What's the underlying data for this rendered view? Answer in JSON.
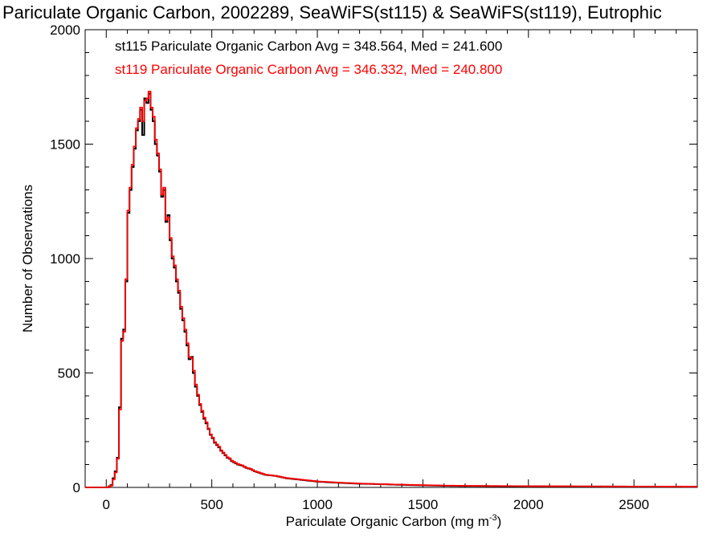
{
  "chart_data": {
    "type": "histogram",
    "title": "Pariculate Organic Carbon, 2002289, SeaWiFS(st115) & SeaWiFS(st119), Eutrophic",
    "xlabel": "Pariculate Organic Carbon (mg m",
    "xlabel_sup": "-3",
    "xlabel_close": ")",
    "ylabel": "Number of Observations",
    "xlim": [
      -100,
      2800
    ],
    "ylim": [
      0,
      2000
    ],
    "xticks": [
      0,
      500,
      1000,
      1500,
      2000,
      2500
    ],
    "xtick_labels": [
      "0",
      "500",
      "1000",
      "1500",
      "2000",
      "2500"
    ],
    "yticks": [
      0,
      500,
      1000,
      1500,
      2000
    ],
    "ytick_labels": [
      "0",
      "500",
      "1000",
      "1500",
      "2000"
    ],
    "bin_width": 10,
    "series": [
      {
        "name": "st115",
        "color": "#000000",
        "legend": "st115 Pariculate Organic Carbon Avg = 348.564, Med = 241.600",
        "points": [
          [
            -100,
            0
          ],
          [
            0,
            0
          ],
          [
            20,
            10
          ],
          [
            30,
            40
          ],
          [
            40,
            70
          ],
          [
            50,
            130
          ],
          [
            60,
            350
          ],
          [
            70,
            650
          ],
          [
            80,
            690
          ],
          [
            90,
            900
          ],
          [
            100,
            1200
          ],
          [
            110,
            1300
          ],
          [
            120,
            1400
          ],
          [
            130,
            1480
          ],
          [
            140,
            1560
          ],
          [
            150,
            1600
          ],
          [
            160,
            1650
          ],
          [
            170,
            1540
          ],
          [
            180,
            1700
          ],
          [
            190,
            1680
          ],
          [
            200,
            1720
          ],
          [
            210,
            1650
          ],
          [
            220,
            1600
          ],
          [
            230,
            1500
          ],
          [
            240,
            1450
          ],
          [
            250,
            1380
          ],
          [
            260,
            1270
          ],
          [
            270,
            1300
          ],
          [
            280,
            1160
          ],
          [
            290,
            1190
          ],
          [
            300,
            1080
          ],
          [
            310,
            1000
          ],
          [
            320,
            960
          ],
          [
            330,
            900
          ],
          [
            340,
            850
          ],
          [
            350,
            780
          ],
          [
            360,
            730
          ],
          [
            370,
            680
          ],
          [
            380,
            620
          ],
          [
            390,
            560
          ],
          [
            400,
            570
          ],
          [
            410,
            500
          ],
          [
            420,
            440
          ],
          [
            430,
            400
          ],
          [
            440,
            360
          ],
          [
            450,
            330
          ],
          [
            460,
            300
          ],
          [
            470,
            280
          ],
          [
            480,
            255
          ],
          [
            490,
            230
          ],
          [
            500,
            215
          ],
          [
            510,
            195
          ],
          [
            520,
            185
          ],
          [
            530,
            175
          ],
          [
            540,
            160
          ],
          [
            550,
            150
          ],
          [
            560,
            140
          ],
          [
            570,
            130
          ],
          [
            580,
            125
          ],
          [
            590,
            115
          ],
          [
            600,
            110
          ],
          [
            620,
            100
          ],
          [
            640,
            95
          ],
          [
            660,
            85
          ],
          [
            680,
            80
          ],
          [
            700,
            70
          ],
          [
            750,
            55
          ],
          [
            800,
            50
          ],
          [
            850,
            40
          ],
          [
            900,
            35
          ],
          [
            1000,
            25
          ],
          [
            1100,
            20
          ],
          [
            1200,
            16
          ],
          [
            1300,
            14
          ],
          [
            1400,
            11
          ],
          [
            1500,
            9
          ],
          [
            1600,
            7
          ],
          [
            1700,
            6
          ],
          [
            1800,
            6
          ],
          [
            1900,
            5
          ],
          [
            2000,
            5
          ],
          [
            2200,
            4
          ],
          [
            2400,
            4
          ],
          [
            2600,
            3
          ],
          [
            2800,
            3
          ]
        ]
      },
      {
        "name": "st119",
        "color": "#ff0000",
        "legend": "st119 Pariculate Organic Carbon Avg = 346.332, Med = 240.800",
        "points": [
          [
            -100,
            0
          ],
          [
            0,
            0
          ],
          [
            20,
            8
          ],
          [
            30,
            35
          ],
          [
            40,
            65
          ],
          [
            50,
            125
          ],
          [
            60,
            340
          ],
          [
            70,
            640
          ],
          [
            80,
            680
          ],
          [
            90,
            910
          ],
          [
            100,
            1210
          ],
          [
            110,
            1310
          ],
          [
            120,
            1410
          ],
          [
            130,
            1490
          ],
          [
            140,
            1570
          ],
          [
            150,
            1610
          ],
          [
            160,
            1660
          ],
          [
            170,
            1600
          ],
          [
            180,
            1690
          ],
          [
            190,
            1700
          ],
          [
            200,
            1730
          ],
          [
            210,
            1660
          ],
          [
            220,
            1620
          ],
          [
            230,
            1520
          ],
          [
            240,
            1460
          ],
          [
            250,
            1390
          ],
          [
            260,
            1280
          ],
          [
            270,
            1310
          ],
          [
            280,
            1170
          ],
          [
            290,
            1180
          ],
          [
            300,
            1090
          ],
          [
            310,
            1010
          ],
          [
            320,
            970
          ],
          [
            330,
            910
          ],
          [
            340,
            860
          ],
          [
            350,
            790
          ],
          [
            360,
            740
          ],
          [
            370,
            690
          ],
          [
            380,
            630
          ],
          [
            390,
            570
          ],
          [
            400,
            565
          ],
          [
            410,
            510
          ],
          [
            420,
            450
          ],
          [
            430,
            405
          ],
          [
            440,
            365
          ],
          [
            450,
            335
          ],
          [
            460,
            305
          ],
          [
            470,
            285
          ],
          [
            480,
            258
          ],
          [
            490,
            232
          ],
          [
            500,
            218
          ],
          [
            510,
            198
          ],
          [
            520,
            188
          ],
          [
            530,
            178
          ],
          [
            540,
            162
          ],
          [
            550,
            152
          ],
          [
            560,
            142
          ],
          [
            570,
            132
          ],
          [
            580,
            127
          ],
          [
            590,
            117
          ],
          [
            600,
            112
          ],
          [
            620,
            102
          ],
          [
            640,
            96
          ],
          [
            660,
            86
          ],
          [
            680,
            81
          ],
          [
            700,
            71
          ],
          [
            750,
            56
          ],
          [
            800,
            50
          ],
          [
            850,
            41
          ],
          [
            900,
            36
          ],
          [
            1000,
            26
          ],
          [
            1100,
            21
          ],
          [
            1200,
            17
          ],
          [
            1300,
            14
          ],
          [
            1400,
            12
          ],
          [
            1500,
            10
          ],
          [
            1600,
            8
          ],
          [
            1700,
            7
          ],
          [
            1800,
            6
          ],
          [
            1900,
            6
          ],
          [
            2000,
            5
          ],
          [
            2200,
            5
          ],
          [
            2400,
            4
          ],
          [
            2600,
            4
          ],
          [
            2800,
            3
          ]
        ]
      }
    ]
  }
}
